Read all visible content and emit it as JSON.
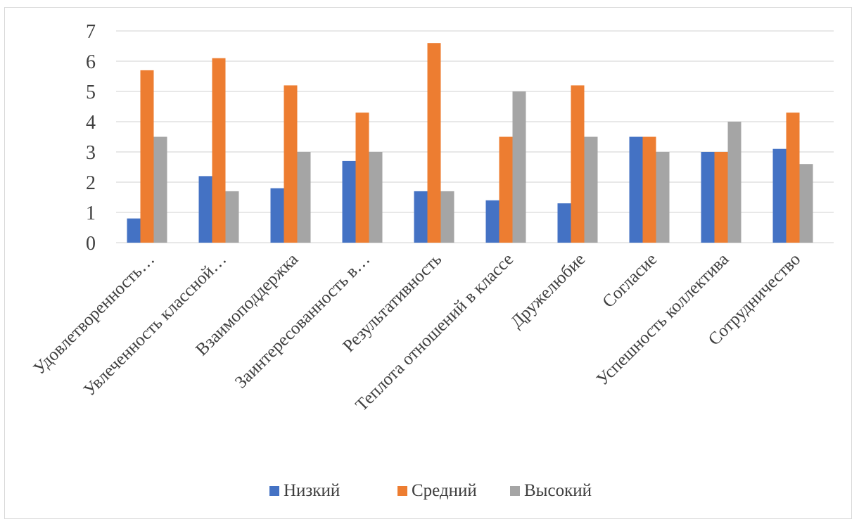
{
  "chart_data": {
    "type": "bar",
    "title": "",
    "xlabel": "",
    "ylabel": "",
    "ylim": [
      0,
      7
    ],
    "yticks": [
      0,
      1,
      2,
      3,
      4,
      5,
      6,
      7
    ],
    "grid": true,
    "legend": "bottom",
    "categories": [
      "Удовлетворенность…",
      "Увлеченность классной…",
      "Взаимоподдержка",
      "Заинтересованность в…",
      "Результативность",
      "Теплота отношений в классе",
      "Дружелюбие",
      "Согласие",
      "Успешность коллектива",
      "Сотрудничество"
    ],
    "series": [
      {
        "name": "Низкий",
        "color": "#4472c4",
        "values": [
          0.8,
          2.2,
          1.8,
          2.7,
          1.7,
          1.4,
          1.3,
          3.5,
          3.0,
          3.1
        ]
      },
      {
        "name": "Средний",
        "color": "#ed7d31",
        "values": [
          5.7,
          6.1,
          5.2,
          4.3,
          6.6,
          3.5,
          5.2,
          3.5,
          3.0,
          4.3
        ]
      },
      {
        "name": "Высокий",
        "color": "#a5a5a5",
        "values": [
          3.5,
          1.7,
          3.0,
          3.0,
          1.7,
          5.0,
          3.5,
          3.0,
          4.0,
          2.6
        ]
      }
    ]
  }
}
